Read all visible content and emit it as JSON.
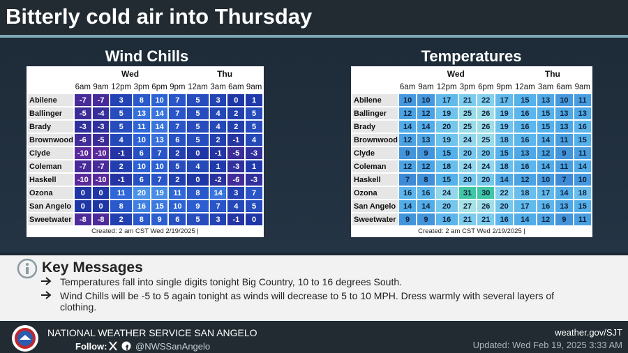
{
  "header": {
    "title": "Bitterly cold air into Thursday"
  },
  "tables": [
    {
      "title": "Wind Chills",
      "days": [
        "Wed",
        "Thu"
      ],
      "hours": [
        "6am",
        "9am",
        "12pm",
        "3pm",
        "6pm",
        "9pm",
        "12am",
        "3am",
        "6am",
        "9am"
      ],
      "rows": [
        {
          "city": "Abilene",
          "values": [
            -7,
            -7,
            3,
            8,
            10,
            7,
            5,
            3,
            0,
            1
          ]
        },
        {
          "city": "Ballinger",
          "values": [
            -5,
            -4,
            5,
            13,
            14,
            7,
            5,
            4,
            2,
            5
          ]
        },
        {
          "city": "Brady",
          "values": [
            -3,
            -3,
            5,
            11,
            14,
            7,
            5,
            4,
            2,
            5
          ]
        },
        {
          "city": "Brownwood",
          "values": [
            -6,
            -5,
            4,
            10,
            13,
            6,
            5,
            2,
            -1,
            4
          ]
        },
        {
          "city": "Clyde",
          "values": [
            -10,
            -10,
            -1,
            6,
            7,
            2,
            0,
            -1,
            -5,
            -3
          ]
        },
        {
          "city": "Coleman",
          "values": [
            -7,
            -7,
            2,
            10,
            10,
            5,
            4,
            1,
            -3,
            1
          ]
        },
        {
          "city": "Haskell",
          "values": [
            -10,
            -10,
            -1,
            6,
            7,
            2,
            0,
            -2,
            -6,
            -3
          ]
        },
        {
          "city": "Ozona",
          "values": [
            0,
            0,
            11,
            20,
            19,
            11,
            8,
            14,
            3,
            7
          ]
        },
        {
          "city": "San Angelo",
          "values": [
            0,
            0,
            8,
            16,
            15,
            10,
            9,
            7,
            4,
            5
          ]
        },
        {
          "city": "Sweetwater",
          "values": [
            -8,
            -8,
            2,
            8,
            9,
            6,
            5,
            3,
            -1,
            0
          ]
        }
      ],
      "footer": "Created: 2 am CST Wed 2/19/2025  |"
    },
    {
      "title": "Temperatures",
      "days": [
        "Wed",
        "Thu"
      ],
      "hours": [
        "6am",
        "9am",
        "12pm",
        "3pm",
        "6pm",
        "9pm",
        "12am",
        "3am",
        "6am",
        "9am"
      ],
      "rows": [
        {
          "city": "Abilene",
          "values": [
            10,
            10,
            17,
            21,
            22,
            17,
            15,
            13,
            10,
            11
          ]
        },
        {
          "city": "Ballinger",
          "values": [
            12,
            12,
            19,
            25,
            26,
            19,
            16,
            15,
            13,
            13
          ]
        },
        {
          "city": "Brady",
          "values": [
            14,
            14,
            20,
            25,
            26,
            19,
            16,
            15,
            13,
            16
          ]
        },
        {
          "city": "Brownwood",
          "values": [
            12,
            13,
            19,
            24,
            25,
            18,
            16,
            14,
            11,
            15
          ]
        },
        {
          "city": "Clyde",
          "values": [
            9,
            9,
            15,
            20,
            20,
            15,
            13,
            12,
            9,
            11
          ]
        },
        {
          "city": "Coleman",
          "values": [
            12,
            12,
            18,
            24,
            24,
            18,
            16,
            14,
            11,
            14
          ]
        },
        {
          "city": "Haskell",
          "values": [
            7,
            8,
            15,
            20,
            20,
            14,
            12,
            10,
            7,
            10
          ]
        },
        {
          "city": "Ozona",
          "values": [
            16,
            16,
            24,
            31,
            30,
            22,
            18,
            17,
            14,
            18
          ]
        },
        {
          "city": "San Angelo",
          "values": [
            14,
            14,
            20,
            27,
            26,
            20,
            17,
            16,
            13,
            15
          ]
        },
        {
          "city": "Sweetwater",
          "values": [
            9,
            9,
            16,
            21,
            21,
            16,
            14,
            12,
            9,
            11
          ]
        }
      ],
      "footer": "Created: 2 am CST Wed 2/19/2025  |"
    }
  ],
  "key_messages": {
    "title": "Key Messages",
    "bullets": [
      "Temperatures fall into single digits tonight Big Country, 10 to 16 degrees South.",
      "Wind Chills will be -5 to 5 again tonight as winds will decrease to 5 to 10 MPH. Dress warmly with several layers of clothing."
    ]
  },
  "footer": {
    "office": "NATIONAL WEATHER SERVICE SAN ANGELO",
    "follow": "Follow:",
    "handle": "@NWSSanAngelo",
    "website": "weather.gov/SJT",
    "updated": "Updated: Wed Feb 19, 2025 3:33 AM"
  }
}
